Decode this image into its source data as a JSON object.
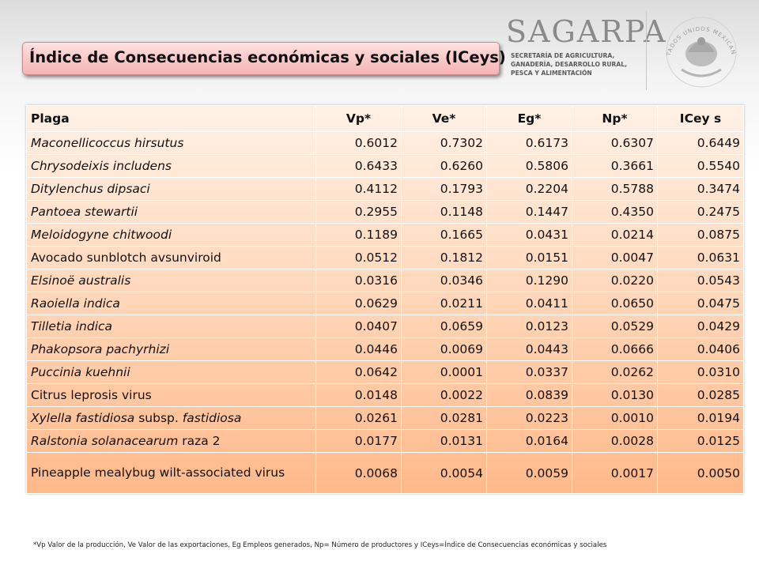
{
  "title": "Índice de Consecuencias económicas y sociales (ICeys)",
  "logo": {
    "word": "SAGARPA",
    "lines": [
      "SECRETARÍA DE AGRICULTURA,",
      "GANADERÍA, DESARROLLO RURAL,",
      "PESCA Y ALIMENTACIÓN"
    ],
    "seal_text": "ESTADOS UNIDOS MEXICANOS",
    "color": "#8a8a8a"
  },
  "table": {
    "headers": [
      "Plaga",
      "Vp*",
      "Ve*",
      "Eg*",
      "Np*",
      "ICey s"
    ],
    "rows": [
      {
        "n1": "Maconellicoccus hirsutus",
        "n1i": true,
        "n2": "",
        "n3": "",
        "n3i": false,
        "v": [
          "0.6012",
          "0.7302",
          "0.6173",
          "0.6307",
          "0.6449"
        ]
      },
      {
        "n1": "Chrysodeixis includens",
        "n1i": true,
        "n2": "",
        "n3": "",
        "n3i": false,
        "v": [
          "0.6433",
          "0.6260",
          "0.5806",
          "0.3661",
          "0.5540"
        ]
      },
      {
        "n1": "Ditylenchus dipsaci",
        "n1i": true,
        "n2": "",
        "n3": "",
        "n3i": false,
        "v": [
          "0.4112",
          "0.1793",
          "0.2204",
          "0.5788",
          "0.3474"
        ]
      },
      {
        "n1": "Pantoea stewartii",
        "n1i": true,
        "n2": "",
        "n3": "",
        "n3i": false,
        "v": [
          "0.2955",
          "0.1148",
          "0.1447",
          "0.4350",
          "0.2475"
        ]
      },
      {
        "n1": "Meloidogyne chitwoodi",
        "n1i": true,
        "n2": "",
        "n3": "",
        "n3i": false,
        "v": [
          "0.1189",
          "0.1665",
          "0.0431",
          "0.0214",
          "0.0875"
        ]
      },
      {
        "n1": "Avocado sunblotch avsunviroid",
        "n1i": false,
        "n2": "",
        "n3": "",
        "n3i": false,
        "v": [
          "0.0512",
          "0.1812",
          "0.0151",
          "0.0047",
          "0.0631"
        ]
      },
      {
        "n1": "Elsinoë australis",
        "n1i": true,
        "n2": "",
        "n3": "",
        "n3i": false,
        "v": [
          "0.0316",
          "0.0346",
          "0.1290",
          "0.0220",
          "0.0543"
        ]
      },
      {
        "n1": "Raoiella indica",
        "n1i": true,
        "n2": "",
        "n3": "",
        "n3i": false,
        "v": [
          "0.0629",
          "0.0211",
          "0.0411",
          "0.0650",
          "0.0475"
        ]
      },
      {
        "n1": "Tilletia indica",
        "n1i": true,
        "n2": "",
        "n3": "",
        "n3i": false,
        "v": [
          "0.0407",
          "0.0659",
          "0.0123",
          "0.0529",
          "0.0429"
        ]
      },
      {
        "n1": "Phakopsora pachyrhizi",
        "n1i": true,
        "n2": "",
        "n3": "",
        "n3i": false,
        "v": [
          "0.0446",
          "0.0069",
          "0.0443",
          "0.0666",
          "0.0406"
        ]
      },
      {
        "n1": "Puccinia kuehnii",
        "n1i": true,
        "n2": "",
        "n3": "",
        "n3i": false,
        "v": [
          "0.0642",
          "0.0001",
          "0.0337",
          "0.0262",
          "0.0310"
        ]
      },
      {
        "n1": "Citrus leprosis virus",
        "n1i": false,
        "n2": "",
        "n3": "",
        "n3i": false,
        "v": [
          "0.0148",
          "0.0022",
          "0.0839",
          "0.0130",
          "0.0285"
        ]
      },
      {
        "n1": "Xylella fastidiosa",
        "n1i": true,
        "n2": " subsp. ",
        "n3": "fastidiosa",
        "n3i": true,
        "v": [
          "0.0261",
          "0.0281",
          "0.0223",
          "0.0010",
          "0.0194"
        ]
      },
      {
        "n1": "Ralstonia solanacearum",
        "n1i": true,
        "n2": " raza 2",
        "n3": "",
        "n3i": false,
        "v": [
          "0.0177",
          "0.0131",
          "0.0164",
          "0.0028",
          "0.0125"
        ]
      },
      {
        "n1": "Pineapple mealybug wilt-associated virus",
        "n1i": false,
        "n2": "",
        "n3": "",
        "n3i": false,
        "v": [
          "0.0068",
          "0.0054",
          "0.0059",
          "0.0017",
          "0.0050"
        ]
      }
    ]
  },
  "footnote": "*Vp Valor de la producción, Ve Valor de las exportaciones, Eg Empleos generados, Np= Número de productores y ICeys=Índice de Consecuencias económicas y sociales",
  "colors": {
    "title_bg": "#f6b3b3",
    "table_top": "#fff1e6",
    "table_bottom": "#ffb98a"
  }
}
